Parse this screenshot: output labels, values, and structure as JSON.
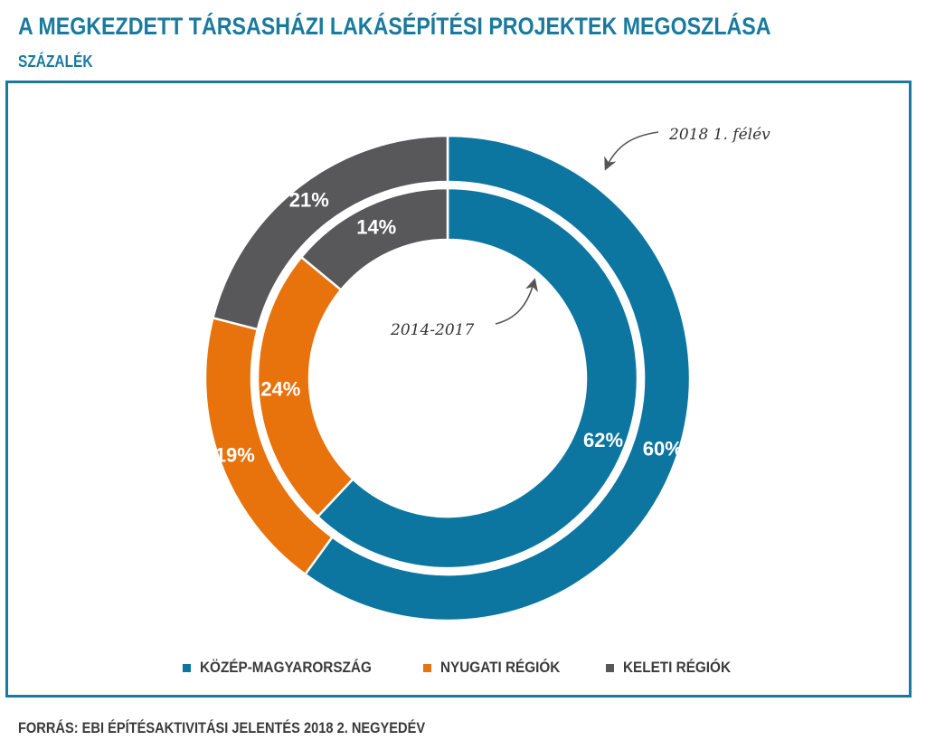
{
  "header": {
    "title": "A MEGKEZDETT TÁRSASHÁZI LAKÁSÉPÍTÉSI PROJEKTEK MEGOSZLÁSA",
    "subtitle": "SZÁZALÉK"
  },
  "footer": {
    "source": "FORRÁS: EBI ÉPÍTÉSAKTIVITÁSI JELENTÉS 2018 2. NEGYEDÉV"
  },
  "chart_data": {
    "type": "pie",
    "variant": "nested-donut",
    "categories": [
      "KÖZÉP-MAGYARORSZÁG",
      "NYUGATI RÉGIÓK",
      "KELETI RÉGIÓK"
    ],
    "colors": [
      "#0d76a0",
      "#e8720c",
      "#58585a"
    ],
    "series": [
      {
        "name": "2018 1. félév",
        "ring": "outer",
        "values": [
          60,
          19,
          21
        ],
        "labels": [
          "60%",
          "19%",
          "21%"
        ]
      },
      {
        "name": "2014-2017",
        "ring": "inner",
        "values": [
          62,
          24,
          14
        ],
        "labels": [
          "62%",
          "24%",
          "14%"
        ]
      }
    ],
    "annotations": [
      "2018 1. félév",
      "2014-2017"
    ],
    "legend": "bottom"
  }
}
